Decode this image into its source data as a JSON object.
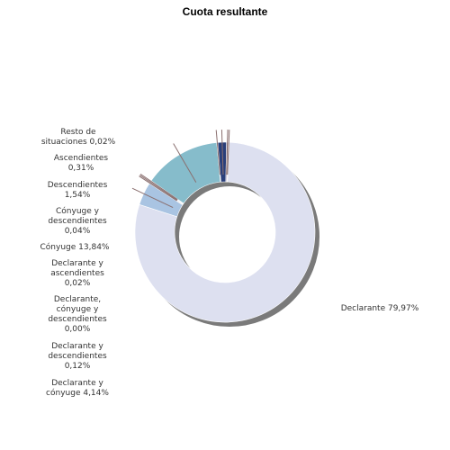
{
  "chart_data": {
    "type": "pie",
    "title": "Cuota resultante",
    "donut": true,
    "slices": [
      {
        "key": "declarante",
        "label": "Declarante 79,97%",
        "lines": [
          "Declarante 79,97%"
        ],
        "value": 79.97,
        "color": "#dde0f0"
      },
      {
        "key": "declarante_conyuge",
        "label": "Declarante y cónyuge 4,14%",
        "lines": [
          "Declarante y",
          "cónyuge 4,14%"
        ],
        "value": 4.14,
        "color": "#a9c4e2"
      },
      {
        "key": "declarante_descendientes",
        "label": "Declarante y descendientes 0,12%",
        "lines": [
          "Declarante y",
          "descendientes",
          "0,12%"
        ],
        "value": 0.12,
        "color": "#d9a7a0"
      },
      {
        "key": "declarante_conyuge_descendientes",
        "label": "Declarante, cónyuge y descendientes 0,00%",
        "lines": [
          "Declarante,",
          "cónyuge y",
          "descendientes",
          "0,00%"
        ],
        "value": 0.0,
        "color": "#7a8fb0"
      },
      {
        "key": "declarante_ascendientes",
        "label": "Declarante y ascendientes 0,02%",
        "lines": [
          "Declarante y",
          "ascendientes",
          "0,02%"
        ],
        "value": 0.02,
        "color": "#b8b8d8"
      },
      {
        "key": "conyuge",
        "label": "Cónyuge 13,84%",
        "lines": [
          "Cónyuge 13,84%"
        ],
        "value": 13.84,
        "color": "#86bccb"
      },
      {
        "key": "conyuge_descendientes",
        "label": "Cónyuge y descendientes 0,04%",
        "lines": [
          "Cónyuge y",
          "descendientes",
          "0,04%"
        ],
        "value": 0.04,
        "color": "#c8a0a0"
      },
      {
        "key": "descendientes",
        "label": "Descendientes 1,54%",
        "lines": [
          "Descendientes",
          "1,54%"
        ],
        "value": 1.54,
        "color": "#2a3f7a"
      },
      {
        "key": "ascendientes",
        "label": "Ascendientes 0,31%",
        "lines": [
          "Ascendientes",
          "0,31%"
        ],
        "value": 0.31,
        "color": "#9a8ab0"
      },
      {
        "key": "resto",
        "label": "Resto de situaciones 0,02%",
        "lines": [
          "Resto de",
          "situaciones 0,02%"
        ],
        "value": 0.02,
        "color": "#b5b5b5"
      }
    ]
  }
}
